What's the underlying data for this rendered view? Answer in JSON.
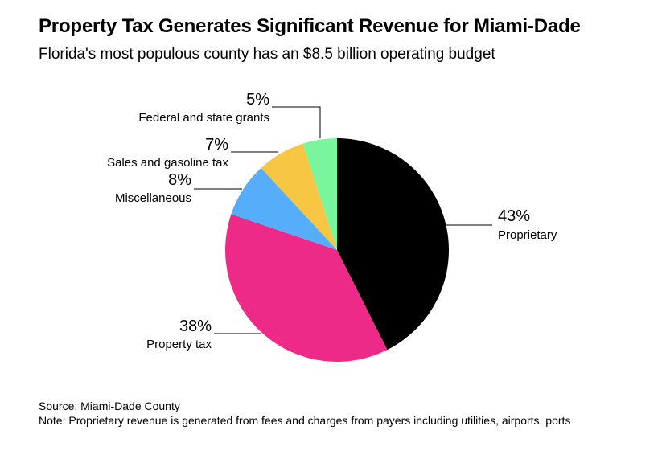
{
  "header": {
    "title": "Property Tax Generates Significant Revenue for Miami-Dade",
    "subtitle": "Florida's most populous county has an $8.5 billion operating budget"
  },
  "chart_data": {
    "type": "pie",
    "slices": [
      {
        "label": "Proprietary",
        "display": "43%",
        "value": 43,
        "color": "#000000"
      },
      {
        "label": "Property tax",
        "display": "38%",
        "value": 38,
        "color": "#ee2a88"
      },
      {
        "label": "Miscellaneous",
        "display": "8%",
        "value": 8,
        "color": "#56adfa"
      },
      {
        "label": "Sales and gasoline tax",
        "display": "7%",
        "value": 7,
        "color": "#f7c744"
      },
      {
        "label": "Federal and state grants",
        "display": "5%",
        "value": 5,
        "color": "#79f59e"
      }
    ]
  },
  "footer": {
    "source": "Source: Miami-Dade County",
    "note": "Note: Proprietary revenue is generated from fees and charges from payers including utilities, airports, ports"
  }
}
